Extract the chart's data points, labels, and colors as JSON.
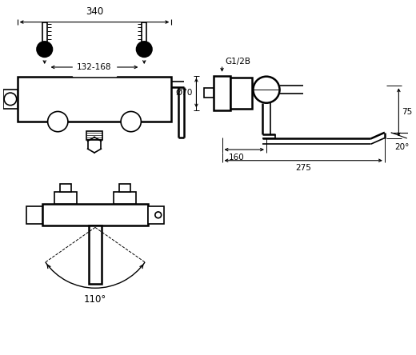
{
  "bg_color": "#ffffff",
  "line_color": "#000000",
  "annotations": {
    "dim_340": "340",
    "dim_132_168": "132-168",
    "dim_g12b": "G1/2B",
    "dim_70": "Ø70",
    "dim_75": "75",
    "dim_160": "160",
    "dim_275": "275",
    "dim_20": "20°",
    "dim_110": "110°"
  },
  "figsize": [
    5.2,
    4.44
  ],
  "dpi": 100
}
